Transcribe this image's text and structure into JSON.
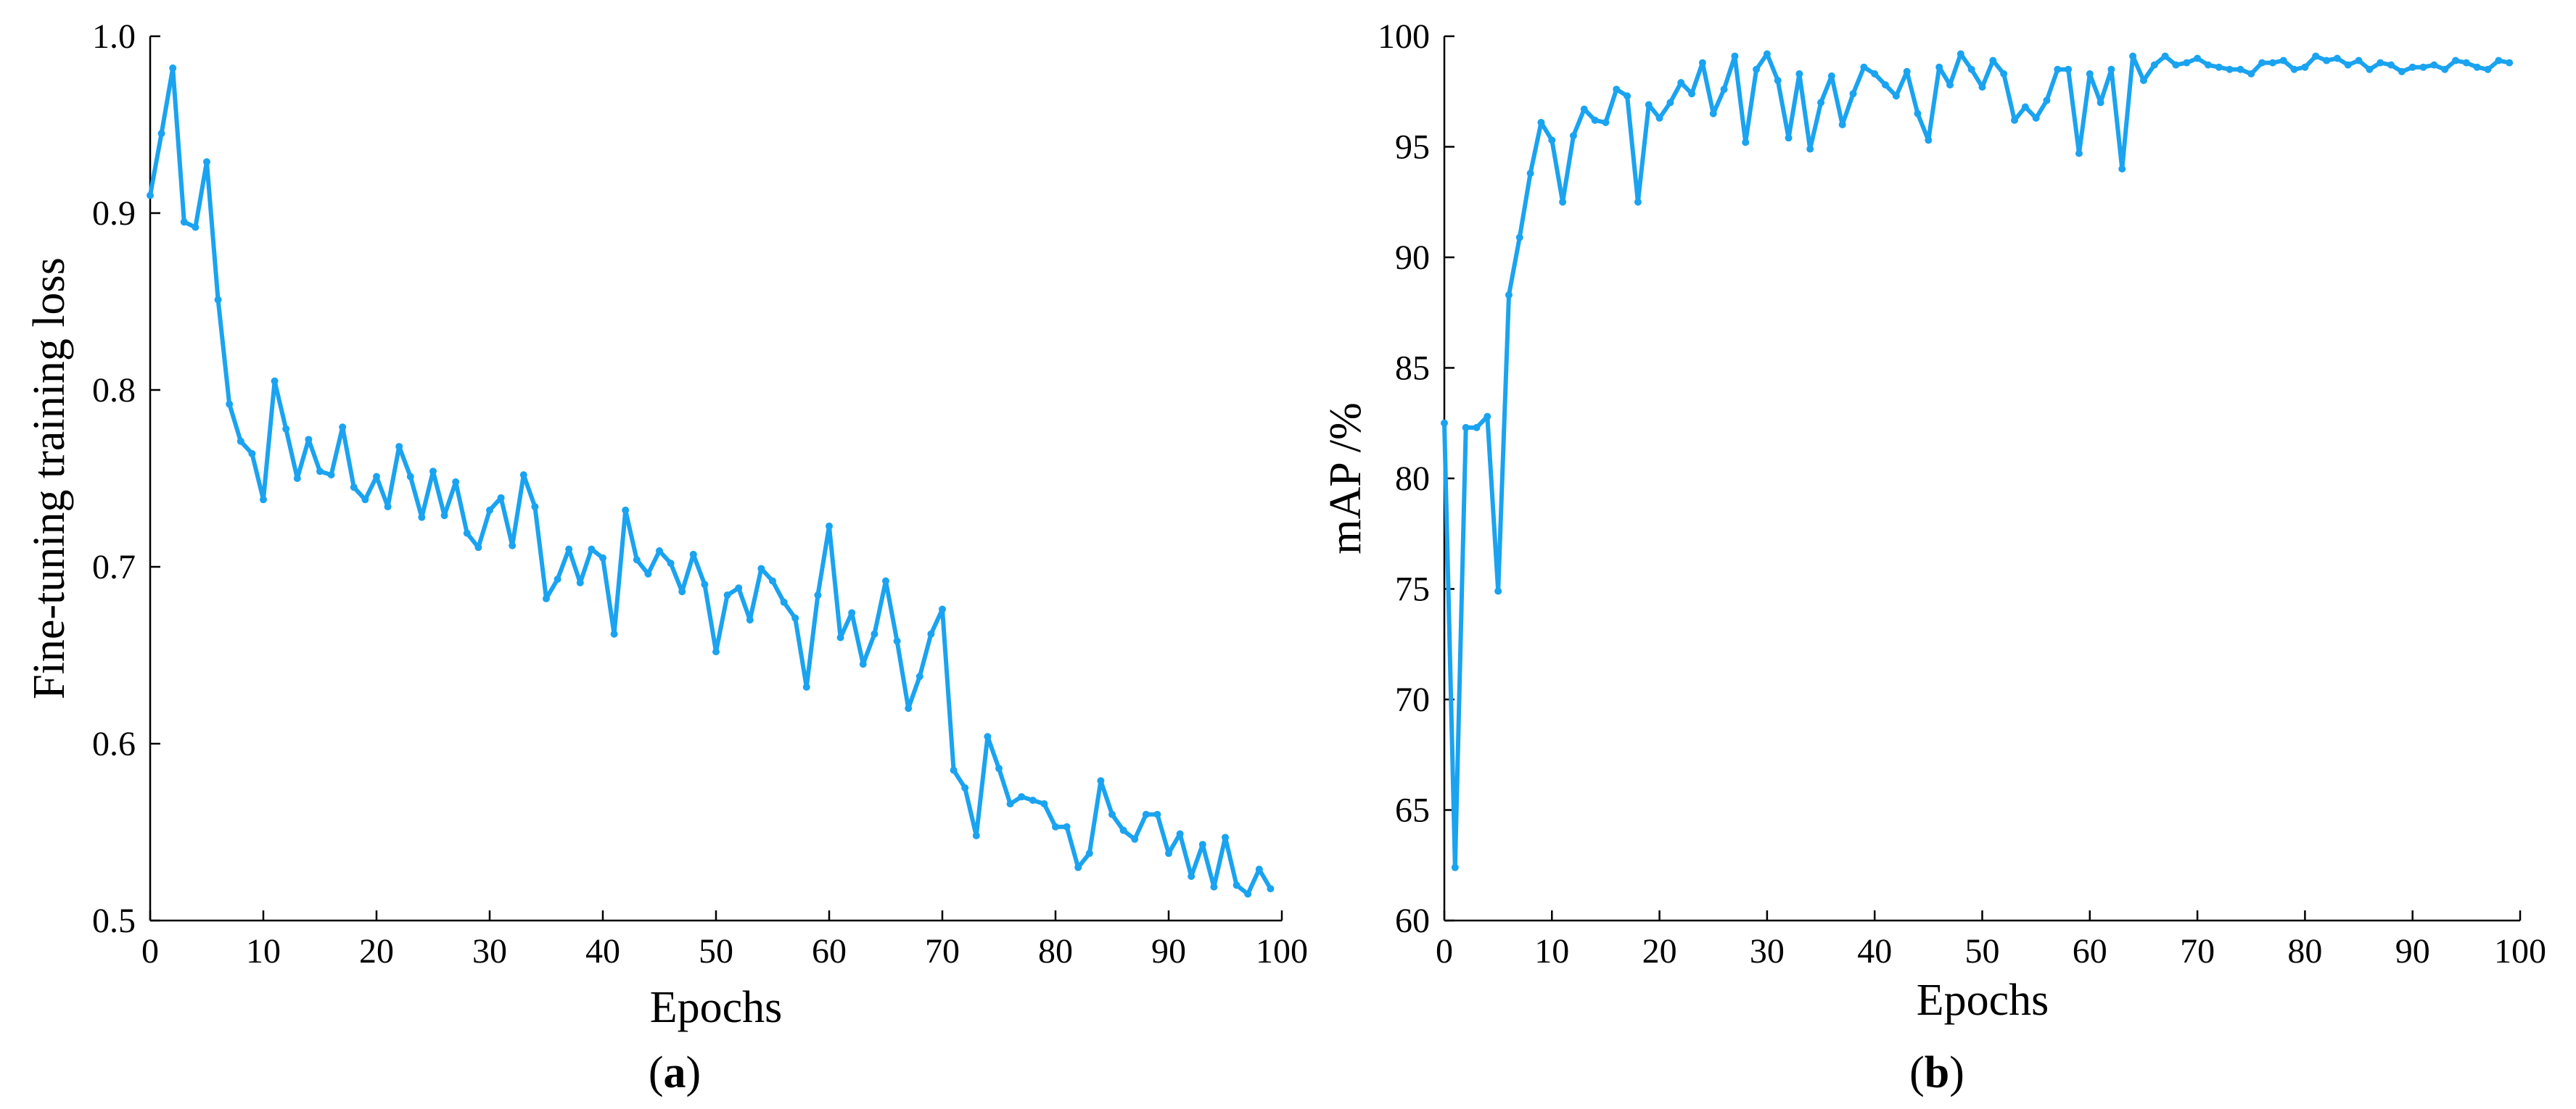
{
  "colors": {
    "series": "#1AA3F0",
    "axis": "#000000",
    "background": "#ffffff"
  },
  "chart_data": [
    {
      "type": "line",
      "panel_label": {
        "open": "(",
        "letter": "a",
        "close": ")"
      },
      "xlabel": "Epochs",
      "ylabel": "Fine-tuning training loss",
      "xlim": [
        0,
        100
      ],
      "ylim": [
        0.5,
        1.0
      ],
      "xticks": [
        0,
        10,
        20,
        30,
        40,
        50,
        60,
        70,
        80,
        90,
        100
      ],
      "xtick_labels": [
        "0",
        "10",
        "20",
        "30",
        "40",
        "50",
        "60",
        "70",
        "80",
        "90",
        "100"
      ],
      "yticks": [
        0.5,
        0.6,
        0.7,
        0.8,
        0.9,
        1.0
      ],
      "ytick_labels": [
        "0.5",
        "0.6",
        "0.7",
        "0.8",
        "0.9",
        "1.0"
      ],
      "grid": false,
      "legend": "none",
      "series": [
        {
          "color": "#1AA3F0",
          "x": [
            0,
            1,
            2,
            3,
            4,
            5,
            6,
            7,
            8,
            9,
            10,
            11,
            12,
            13,
            14,
            15,
            16,
            17,
            18,
            19,
            20,
            21,
            22,
            23,
            24,
            25,
            26,
            27,
            28,
            29,
            30,
            31,
            32,
            33,
            34,
            35,
            36,
            37,
            38,
            39,
            40,
            41,
            42,
            43,
            44,
            45,
            46,
            47,
            48,
            49,
            50,
            51,
            52,
            53,
            54,
            55,
            56,
            57,
            58,
            59,
            60,
            61,
            62,
            63,
            64,
            65,
            66,
            67,
            68,
            69,
            70,
            71,
            72,
            73,
            74,
            75,
            76,
            77,
            78,
            79,
            80,
            81,
            82,
            83,
            84,
            85,
            86,
            87,
            88,
            89,
            90,
            91,
            92,
            93,
            94,
            95,
            96,
            97,
            98,
            99
          ],
          "values": [
            0.91,
            0.945,
            0.982,
            0.895,
            0.892,
            0.929,
            0.851,
            0.792,
            0.771,
            0.764,
            0.738,
            0.805,
            0.778,
            0.75,
            0.772,
            0.754,
            0.752,
            0.779,
            0.745,
            0.738,
            0.751,
            0.734,
            0.768,
            0.751,
            0.728,
            0.754,
            0.729,
            0.748,
            0.719,
            0.711,
            0.732,
            0.739,
            0.712,
            0.752,
            0.734,
            0.682,
            0.693,
            0.71,
            0.691,
            0.71,
            0.705,
            0.662,
            0.732,
            0.704,
            0.696,
            0.709,
            0.702,
            0.686,
            0.707,
            0.69,
            0.652,
            0.684,
            0.688,
            0.67,
            0.699,
            0.692,
            0.68,
            0.671,
            0.632,
            0.684,
            0.723,
            0.66,
            0.674,
            0.645,
            0.662,
            0.692,
            0.658,
            0.62,
            0.638,
            0.662,
            0.676,
            0.585,
            0.575,
            0.548,
            0.604,
            0.586,
            0.566,
            0.57,
            0.568,
            0.566,
            0.553,
            0.553,
            0.53,
            0.538,
            0.579,
            0.56,
            0.551,
            0.546,
            0.56,
            0.56,
            0.538,
            0.549,
            0.525,
            0.543,
            0.519,
            0.547,
            0.52,
            0.515,
            0.529,
            0.518
          ]
        }
      ]
    },
    {
      "type": "line",
      "panel_label": {
        "open": "(",
        "letter": "b",
        "close": ")"
      },
      "xlabel": "Epochs",
      "ylabel": "mAP /%",
      "xlim": [
        0,
        100
      ],
      "ylim": [
        60,
        100
      ],
      "xticks": [
        0,
        10,
        20,
        30,
        40,
        50,
        60,
        70,
        80,
        90,
        100
      ],
      "xtick_labels": [
        "0",
        "10",
        "20",
        "30",
        "40",
        "50",
        "60",
        "70",
        "80",
        "90",
        "100"
      ],
      "yticks": [
        60,
        65,
        70,
        75,
        80,
        85,
        90,
        95,
        100
      ],
      "ytick_labels": [
        "60",
        "65",
        "70",
        "75",
        "80",
        "85",
        "90",
        "95",
        "100"
      ],
      "grid": false,
      "legend": "none",
      "series": [
        {
          "color": "#1AA3F0",
          "x": [
            0,
            1,
            2,
            3,
            4,
            5,
            6,
            7,
            8,
            9,
            10,
            11,
            12,
            13,
            14,
            15,
            16,
            17,
            18,
            19,
            20,
            21,
            22,
            23,
            24,
            25,
            26,
            27,
            28,
            29,
            30,
            31,
            32,
            33,
            34,
            35,
            36,
            37,
            38,
            39,
            40,
            41,
            42,
            43,
            44,
            45,
            46,
            47,
            48,
            49,
            50,
            51,
            52,
            53,
            54,
            55,
            56,
            57,
            58,
            59,
            60,
            61,
            62,
            63,
            64,
            65,
            66,
            67,
            68,
            69,
            70,
            71,
            72,
            73,
            74,
            75,
            76,
            77,
            78,
            79,
            80,
            81,
            82,
            83,
            84,
            85,
            86,
            87,
            88,
            89,
            90,
            91,
            92,
            93,
            94,
            95,
            96,
            97,
            98,
            99
          ],
          "values": [
            82.5,
            62.4,
            82.3,
            82.3,
            82.8,
            74.9,
            88.3,
            90.9,
            93.8,
            96.1,
            95.3,
            92.5,
            95.5,
            96.7,
            96.2,
            96.1,
            97.6,
            97.3,
            92.5,
            96.9,
            96.3,
            97.0,
            97.9,
            97.4,
            98.8,
            96.5,
            97.6,
            99.1,
            95.2,
            98.5,
            99.2,
            98.0,
            95.4,
            98.3,
            94.9,
            97.0,
            98.2,
            96.0,
            97.4,
            98.6,
            98.3,
            97.8,
            97.3,
            98.4,
            96.5,
            95.3,
            98.6,
            97.8,
            99.2,
            98.5,
            97.7,
            98.9,
            98.3,
            96.2,
            96.8,
            96.3,
            97.1,
            98.5,
            98.5,
            94.7,
            98.3,
            97.0,
            98.5,
            94.0,
            99.1,
            98.0,
            98.7,
            99.1,
            98.7,
            98.8,
            99.0,
            98.7,
            98.6,
            98.5,
            98.5,
            98.3,
            98.8,
            98.8,
            98.9,
            98.5,
            98.6,
            99.1,
            98.9,
            99.0,
            98.7,
            98.9,
            98.5,
            98.8,
            98.7,
            98.4,
            98.6,
            98.6,
            98.7,
            98.5,
            98.9,
            98.8,
            98.6,
            98.5,
            98.9,
            98.8
          ]
        }
      ]
    }
  ]
}
